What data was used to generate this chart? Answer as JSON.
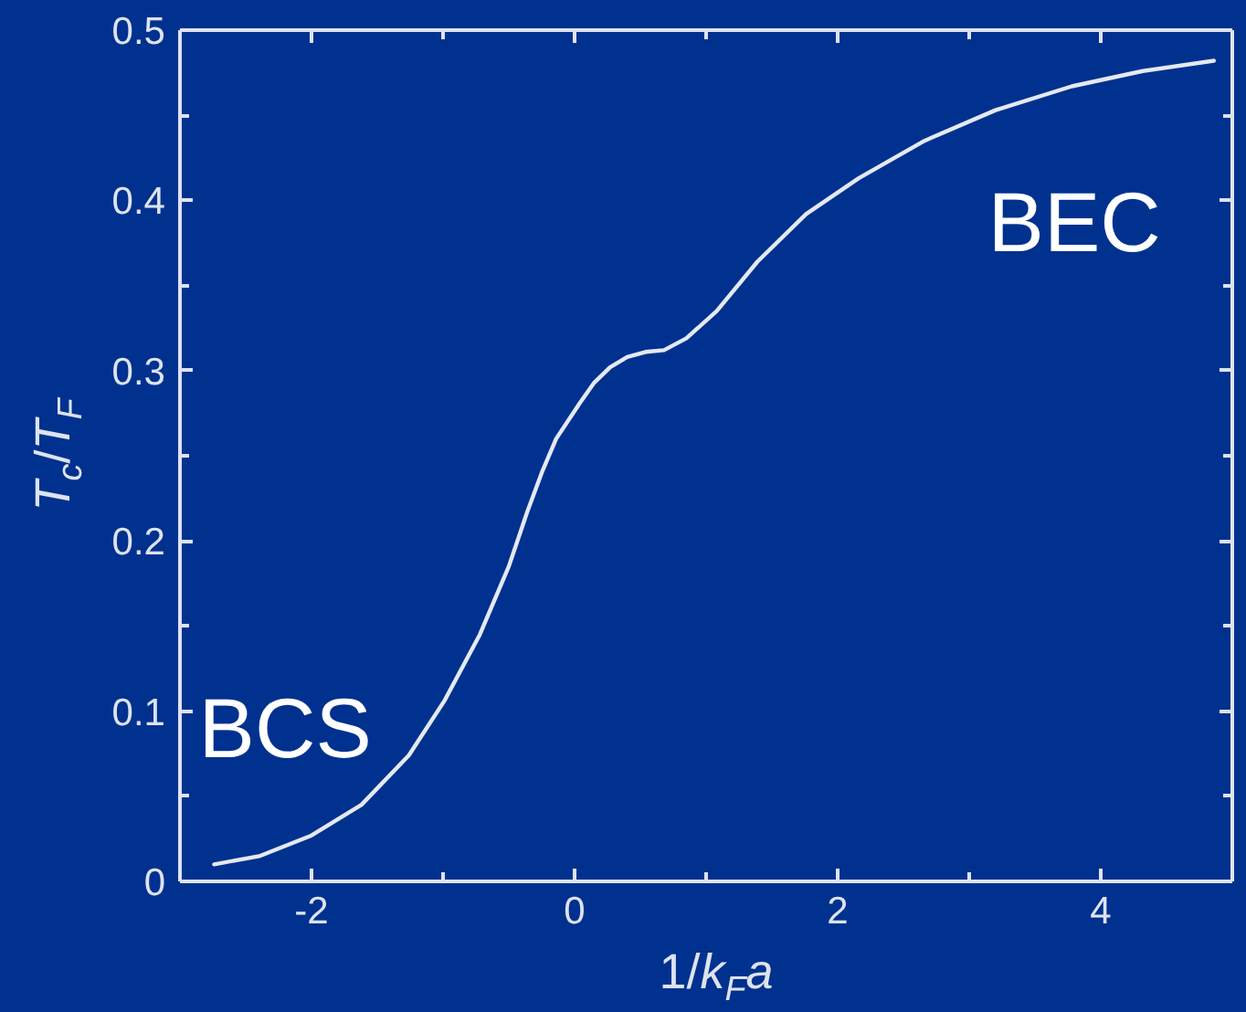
{
  "chart_data": {
    "type": "line",
    "xlabel": "1/k$_{F}$a",
    "ylabel": "T$_{c}$/T$_{F}$",
    "annotations": [
      "BCS",
      "BEC"
    ],
    "xlim": [
      -3,
      5
    ],
    "ylim": [
      0,
      0.5
    ],
    "xticks": [
      -2,
      {
        "value": -1,
        "label": null
      },
      0,
      {
        "value": 1,
        "label": null
      },
      2,
      {
        "value": 3,
        "label": null
      },
      4
    ],
    "yticks": [
      0,
      {
        "value": 0.05,
        "label": null
      },
      0.1,
      {
        "value": 0.15,
        "label": null
      },
      0.2,
      {
        "value": 0.25,
        "label": null
      },
      0.3,
      {
        "value": 0.35,
        "label": null
      },
      0.4,
      {
        "value": 0.45,
        "label": null
      },
      0.5
    ],
    "series": [
      {
        "color": "#e4e9f2",
        "x": [
          -2.74,
          -2.39,
          -2.0,
          -1.62,
          -1.26,
          -0.99,
          -0.72,
          -0.5,
          -0.36,
          -0.25,
          -0.14,
          0.04,
          0.15,
          0.27,
          0.4,
          0.54,
          0.68,
          0.85,
          1.08,
          1.39,
          1.76,
          2.16,
          2.66,
          3.2,
          3.78,
          4.32,
          4.86
        ],
        "values": [
          0.01,
          0.015,
          0.027,
          0.045,
          0.074,
          0.106,
          0.145,
          0.185,
          0.217,
          0.24,
          0.26,
          0.281,
          0.293,
          0.302,
          0.308,
          0.311,
          0.312,
          0.319,
          0.335,
          0.364,
          0.392,
          0.413,
          0.435,
          0.453,
          0.467,
          0.476,
          0.482
        ]
      }
    ]
  }
}
